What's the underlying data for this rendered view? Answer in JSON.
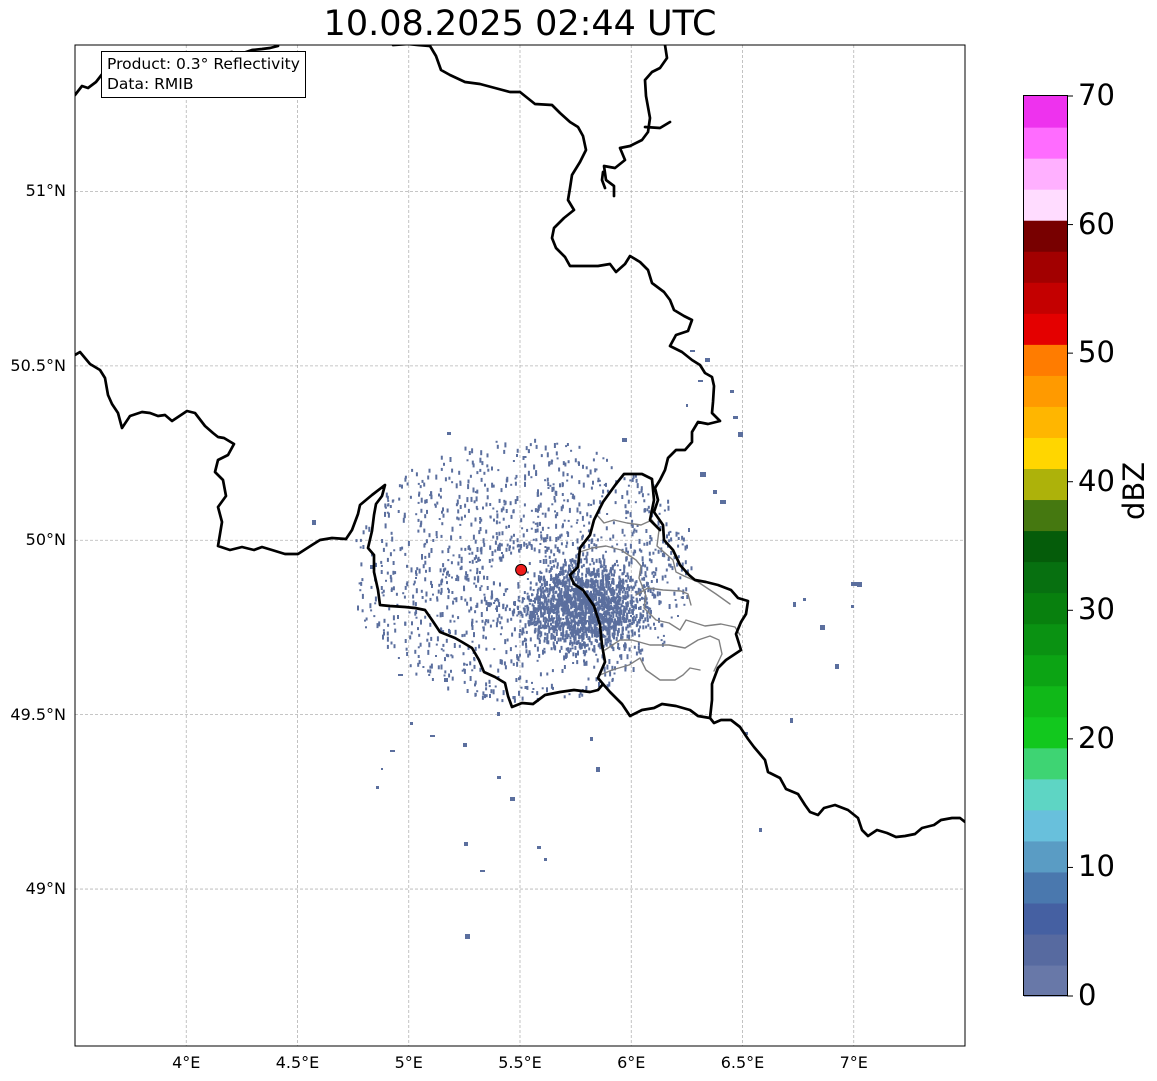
{
  "title": "10.08.2025 02:44 UTC",
  "product_box": {
    "line1": "Product: 0.3° Reflectivity",
    "line2": "Data: RMIB"
  },
  "map": {
    "lon_range": [
      3.5,
      7.5
    ],
    "lat_range": [
      48.55,
      51.42
    ],
    "lat_ticks": [
      {
        "value": 49.0,
        "label": "49°N"
      },
      {
        "value": 49.5,
        "label": "49.5°N"
      },
      {
        "value": 50.0,
        "label": "50°N"
      },
      {
        "value": 50.5,
        "label": "50.5°N"
      },
      {
        "value": 51.0,
        "label": "51°N"
      }
    ],
    "lon_ticks": [
      {
        "value": 4.0,
        "label": "4°E"
      },
      {
        "value": 4.5,
        "label": "4.5°E"
      },
      {
        "value": 5.0,
        "label": "5°E"
      },
      {
        "value": 5.5,
        "label": "5.5°E"
      },
      {
        "value": 6.0,
        "label": "6°E"
      },
      {
        "value": 6.5,
        "label": "6.5°E"
      },
      {
        "value": 7.0,
        "label": "7°E"
      }
    ],
    "radar_site": {
      "lon": 5.505,
      "lat": 49.915,
      "color": "#ee1c1c"
    },
    "echo_color": "#5b6f9e"
  },
  "colorbar": {
    "label": "dBZ",
    "min": 0,
    "max": 70,
    "ticks": [
      {
        "value": 0,
        "label": "0"
      },
      {
        "value": 10,
        "label": "10"
      },
      {
        "value": 20,
        "label": "20"
      },
      {
        "value": 30,
        "label": "30"
      },
      {
        "value": 40,
        "label": "40"
      },
      {
        "value": 50,
        "label": "50"
      },
      {
        "value": 60,
        "label": "60"
      },
      {
        "value": 70,
        "label": "70"
      }
    ],
    "colors": [
      "#6878a8",
      "#576aa0",
      "#4560a2",
      "#4a78ae",
      "#5a9cc4",
      "#68c0dc",
      "#5ed5c4",
      "#3ed473",
      "#12c81e",
      "#10b818",
      "#0ca414",
      "#0a9212",
      "#08800e",
      "#077010",
      "#055c0a",
      "#457810",
      "#adb20a",
      "#ffd600",
      "#ffb600",
      "#ff9a00",
      "#ff7c00",
      "#e40000",
      "#c40000",
      "#a20000",
      "#780000",
      "#ffdcff",
      "#ffb0ff",
      "#ff6cff",
      "#ee32ee"
    ]
  }
}
